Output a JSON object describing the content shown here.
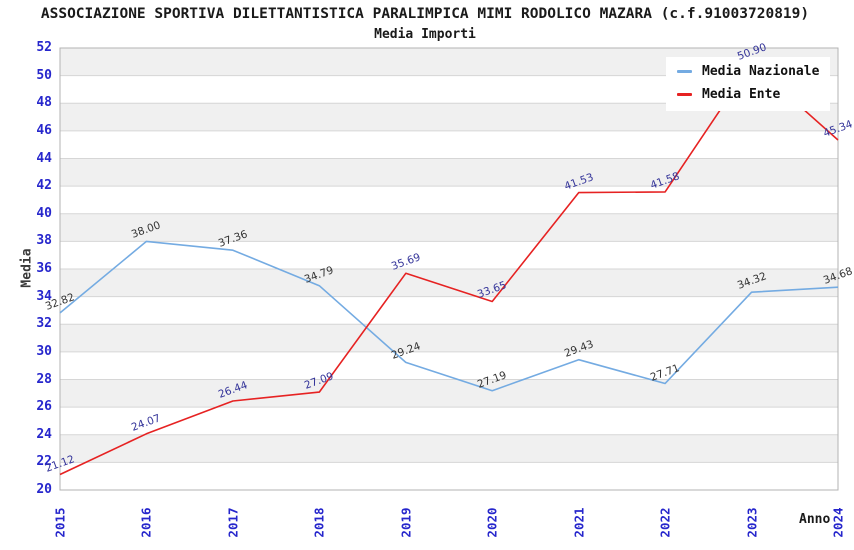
{
  "chart_data": {
    "type": "line",
    "title": "ASSOCIAZIONE SPORTIVA DILETTANTISTICA PARALIMPICA MIMI RODOLICO MAZARA (c.f.91003720819)",
    "subtitle": "Media Importi",
    "xlabel": "Anno",
    "ylabel": "Media",
    "categories": [
      "2015",
      "2016",
      "2017",
      "2018",
      "2019",
      "2020",
      "2021",
      "2022",
      "2023",
      "2024"
    ],
    "ylim": [
      20,
      52
    ],
    "ytick_step": 2,
    "grid": "horizontal-bands",
    "legend_position": "top-right",
    "series": [
      {
        "name": "Media Nazionale",
        "color": "#74abe2",
        "label_color": "#333333",
        "values": [
          32.82,
          38.0,
          37.36,
          34.79,
          29.24,
          27.19,
          29.43,
          27.71,
          34.32,
          34.68
        ]
      },
      {
        "name": "Media Ente",
        "color": "#e62222",
        "label_color": "#333399",
        "values": [
          21.12,
          24.07,
          26.44,
          27.09,
          35.69,
          33.65,
          41.53,
          41.58,
          50.9,
          45.34
        ]
      }
    ],
    "colors": {
      "tick_label": "#2626cc",
      "axis_border": "#b3b3b3",
      "gridline": "#d6d6d6",
      "band_gray": "#f0f0f0",
      "band_white": "#ffffff",
      "legend_bg": "#ffffff",
      "title_text": "#1a1a1a",
      "axis_title_text": "#3a3a3a"
    }
  }
}
